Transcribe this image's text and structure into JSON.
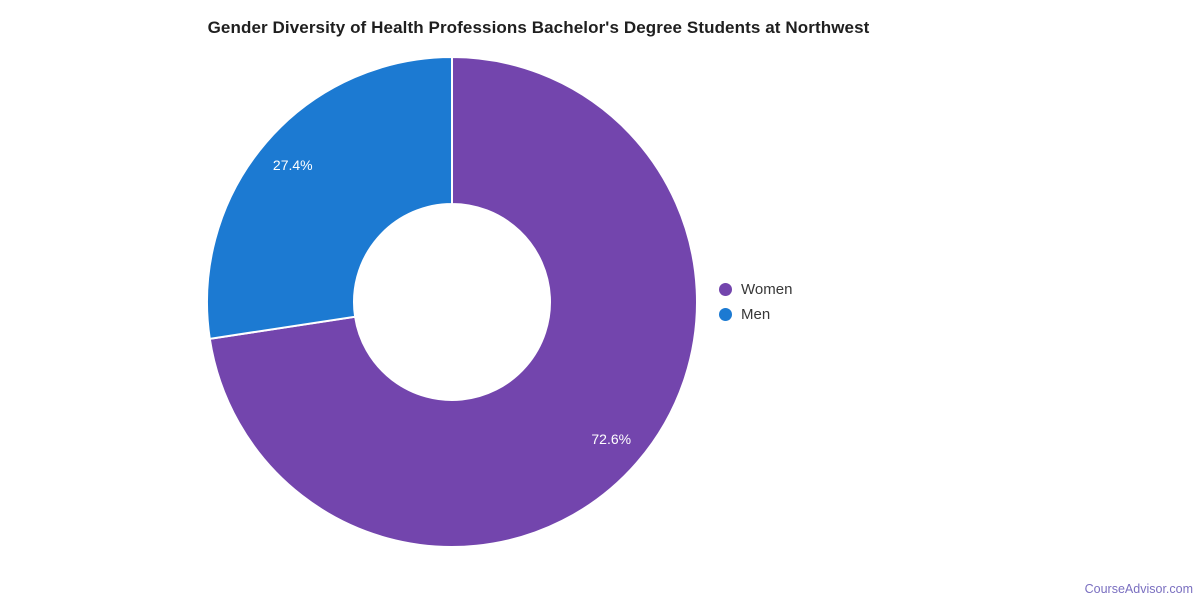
{
  "title": "Gender Diversity of Health Professions Bachelor's Degree Students at Northwest",
  "chart_data": {
    "type": "pie",
    "subtype": "donut",
    "title": "Gender Diversity of Health Professions Bachelor's Degree Students at Northwest",
    "categories": [
      "Women",
      "Men"
    ],
    "values": [
      72.6,
      27.4
    ],
    "value_labels": [
      "72.6%",
      "27.4%"
    ],
    "colors": [
      "#7345ad",
      "#1c7ad2"
    ],
    "start_angle_deg": 0,
    "direction": "clockwise",
    "inner_radius_ratio": 0.4,
    "legend_position": "right",
    "label_color": "#ffffff"
  },
  "legend": {
    "items": [
      {
        "label": "Women",
        "color": "#7345ad"
      },
      {
        "label": "Men",
        "color": "#1c7ad2"
      }
    ]
  },
  "watermark": {
    "text": "CourseAdvisor.com",
    "color": "#7a6fc0"
  }
}
